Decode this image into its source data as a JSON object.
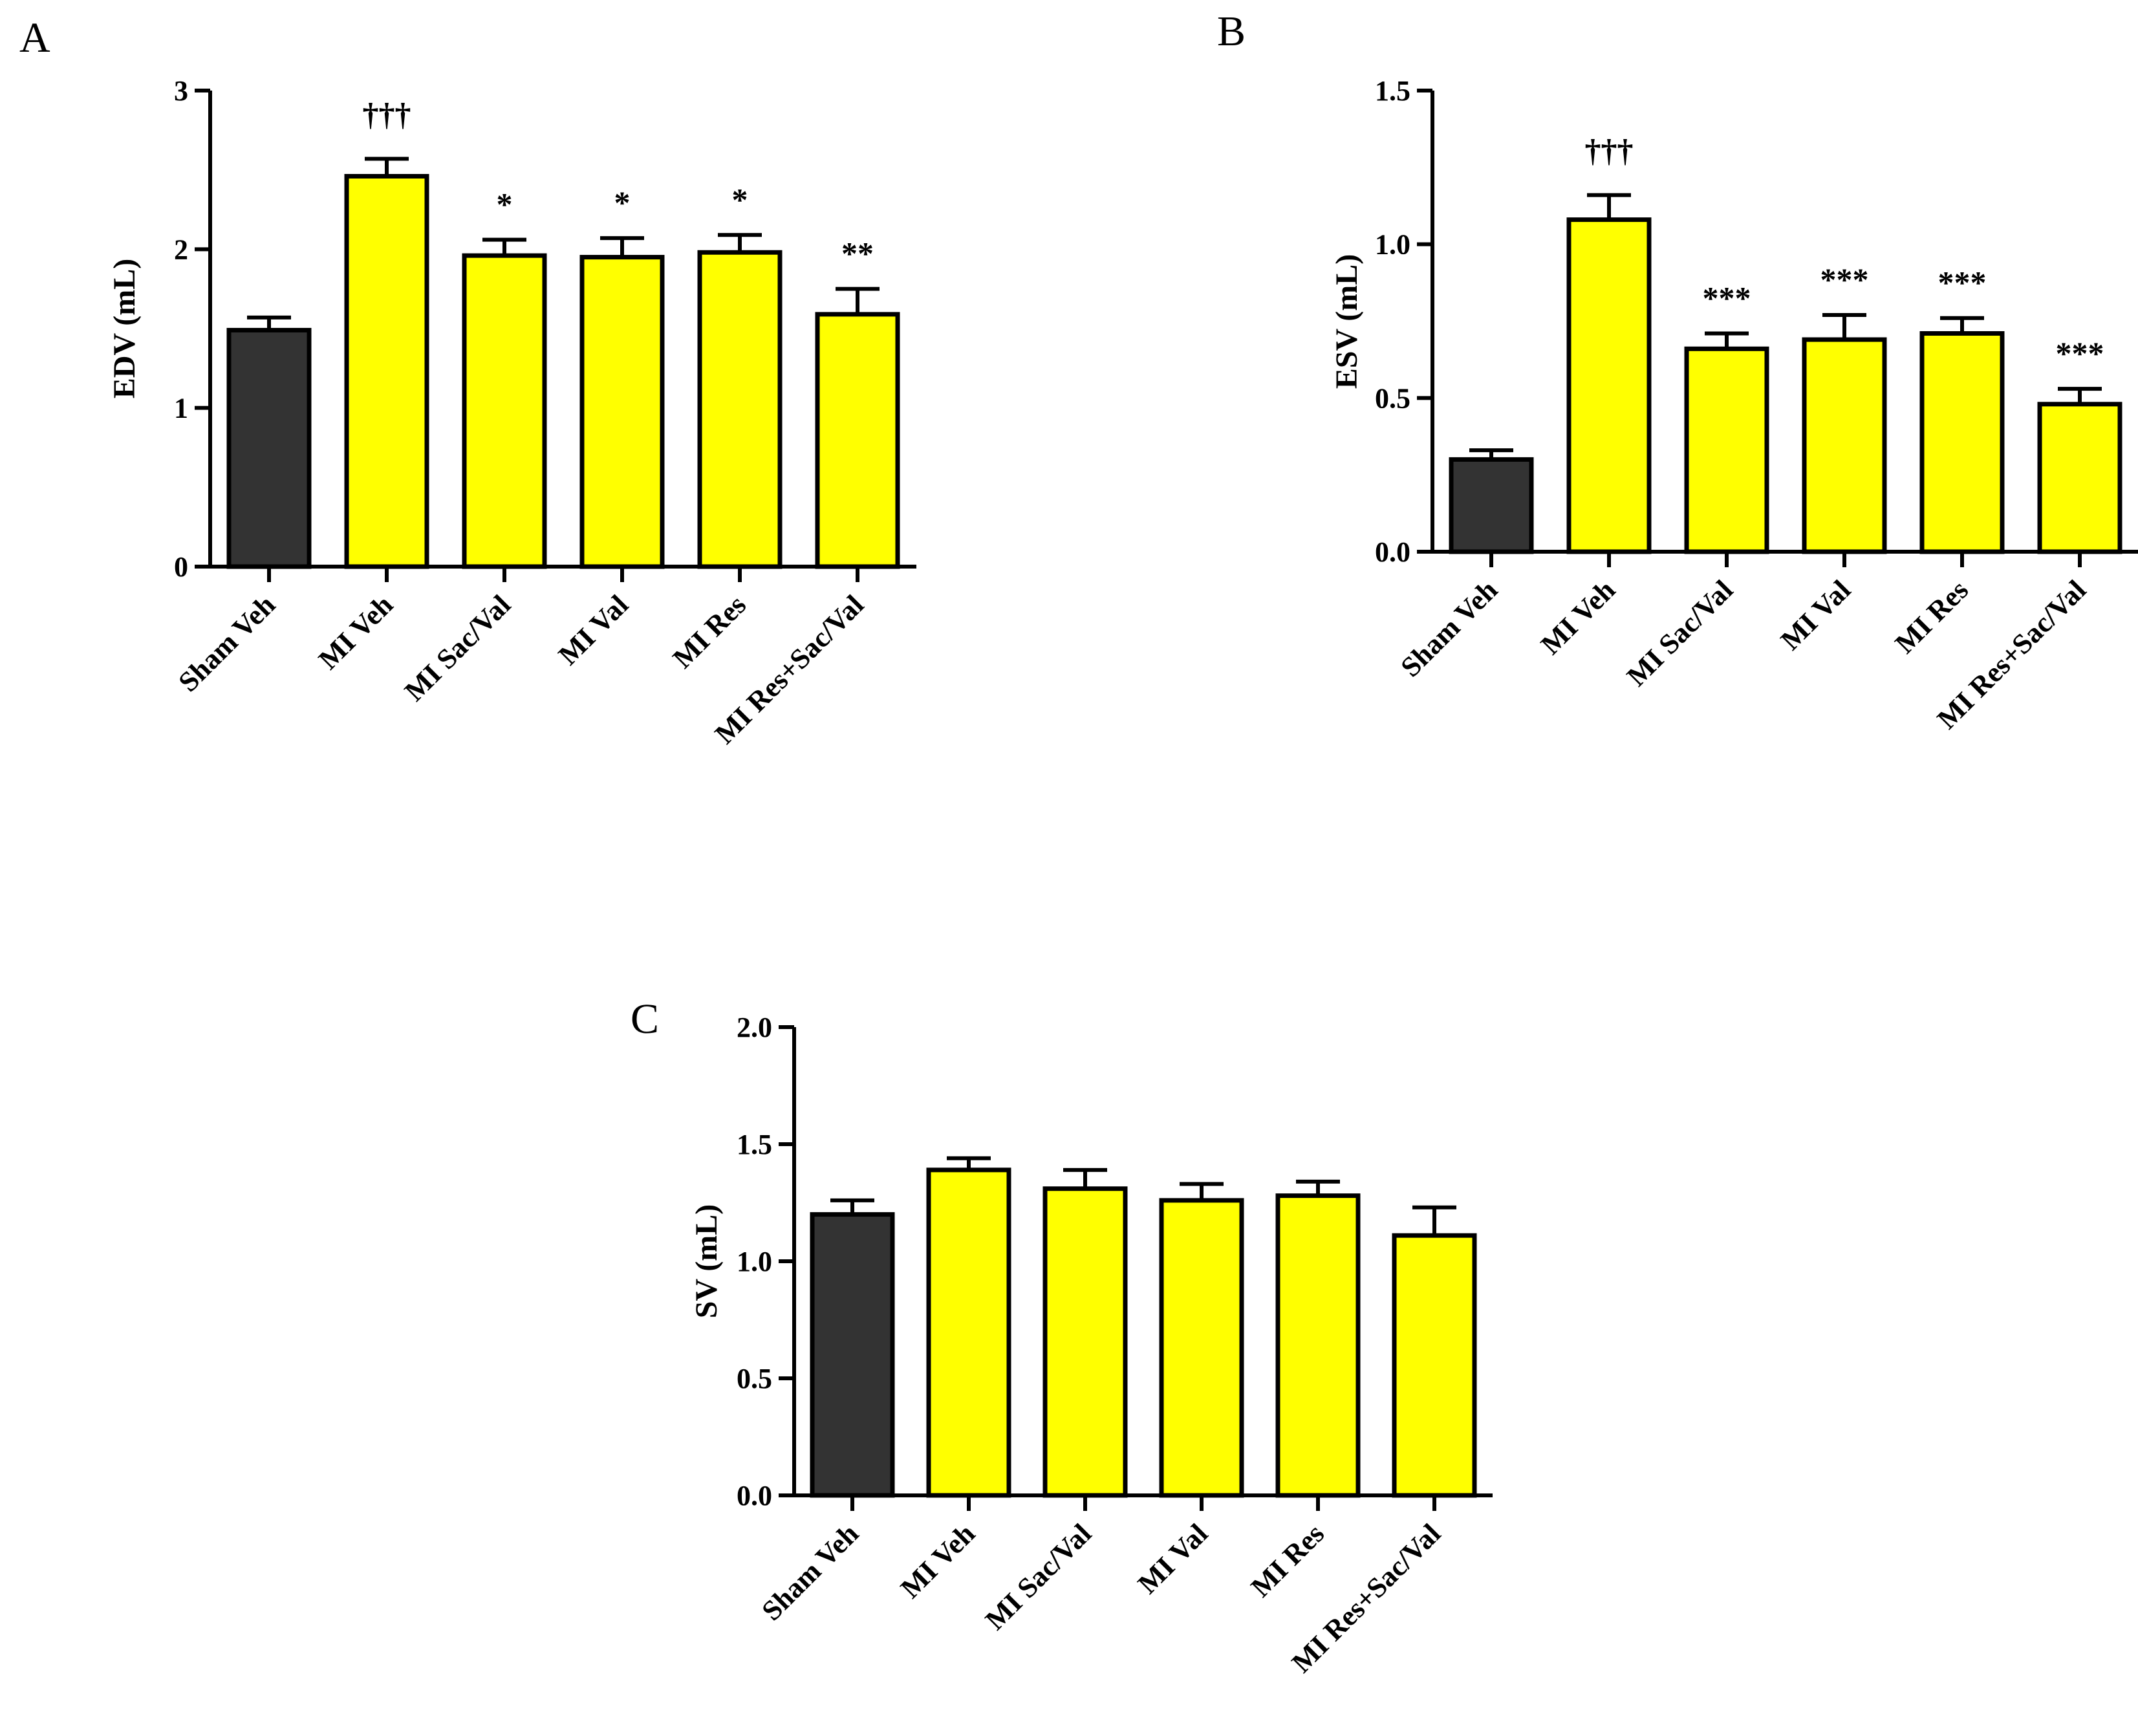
{
  "colors": {
    "sham": "#333333",
    "mi": "#ffff00",
    "stroke": "#000000"
  },
  "chart_data": [
    {
      "type": "bar",
      "panel": "A",
      "title": "",
      "xlabel": "",
      "ylabel": "EDV (mL)",
      "ylim": [
        0,
        3
      ],
      "yticks": [
        0,
        1,
        2,
        3
      ],
      "ytick_labels": [
        "0",
        "1",
        "2",
        "3"
      ],
      "categories": [
        "Sham Veh",
        "MI Veh",
        "MI Sac/Val",
        "MI Val",
        "MI Res",
        "MI Res+Sac/Val"
      ],
      "values": [
        1.49,
        2.46,
        1.96,
        1.95,
        1.98,
        1.59
      ],
      "errors": [
        0.08,
        0.11,
        0.1,
        0.12,
        0.11,
        0.16
      ],
      "annotations": [
        "",
        "†††",
        "*",
        "*",
        "*",
        "**"
      ]
    },
    {
      "type": "bar",
      "panel": "B",
      "title": "",
      "xlabel": "",
      "ylabel": "ESV (mL)",
      "ylim": [
        0,
        1.5
      ],
      "yticks": [
        0,
        0.5,
        1.0,
        1.5
      ],
      "ytick_labels": [
        "0.0",
        "0.5",
        "1.0",
        "1.5"
      ],
      "categories": [
        "Sham Veh",
        "MI Veh",
        "MI Sac/Val",
        "MI Val",
        "MI Res",
        "MI Res+Sac/Val"
      ],
      "values": [
        0.3,
        1.08,
        0.66,
        0.69,
        0.71,
        0.48
      ],
      "errors": [
        0.03,
        0.08,
        0.05,
        0.08,
        0.05,
        0.05
      ],
      "annotations": [
        "",
        "†††",
        "***",
        "***",
        "***",
        "***"
      ]
    },
    {
      "type": "bar",
      "panel": "C",
      "title": "",
      "xlabel": "",
      "ylabel": "SV (mL)",
      "ylim": [
        0,
        2.0
      ],
      "yticks": [
        0,
        0.5,
        1.0,
        1.5,
        2.0
      ],
      "ytick_labels": [
        "0.0",
        "0.5",
        "1.0",
        "1.5",
        "2.0"
      ],
      "categories": [
        "Sham Veh",
        "MI Veh",
        "MI Sac/Val",
        "MI Val",
        "MI Res",
        "MI Res+Sac/Val"
      ],
      "values": [
        1.2,
        1.39,
        1.31,
        1.26,
        1.28,
        1.11
      ],
      "errors": [
        0.06,
        0.05,
        0.08,
        0.07,
        0.06,
        0.12
      ],
      "annotations": [
        "",
        "",
        "",
        "",
        "",
        ""
      ]
    }
  ]
}
